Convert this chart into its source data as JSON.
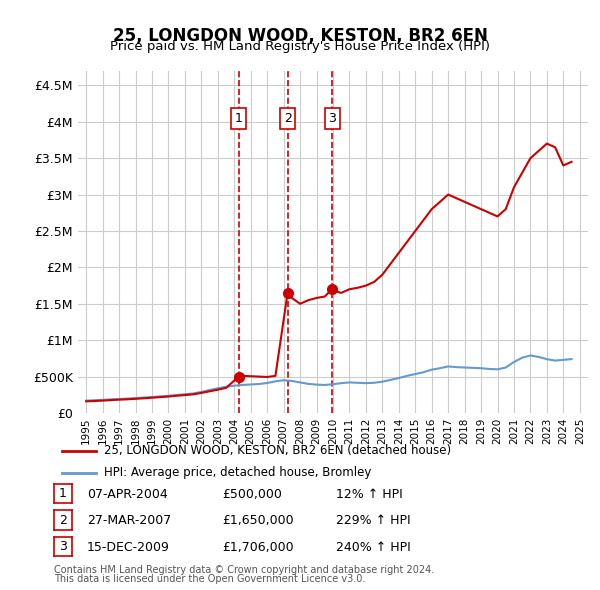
{
  "title": "25, LONGDON WOOD, KESTON, BR2 6EN",
  "subtitle": "Price paid vs. HM Land Registry's House Price Index (HPI)",
  "legend_line1": "25, LONGDON WOOD, KESTON, BR2 6EN (detached house)",
  "legend_line2": "HPI: Average price, detached house, Bromley",
  "footer1": "Contains HM Land Registry data © Crown copyright and database right 2024.",
  "footer2": "This data is licensed under the Open Government Licence v3.0.",
  "transactions": [
    {
      "label": "1",
      "date": "07-APR-2004",
      "year": 2004.27,
      "price": 500000,
      "hpi_pct": "12% ↑ HPI"
    },
    {
      "label": "2",
      "date": "27-MAR-2007",
      "year": 2007.24,
      "price": 1650000,
      "hpi_pct": "229% ↑ HPI"
    },
    {
      "label": "3",
      "date": "15-DEC-2009",
      "year": 2009.96,
      "price": 1706000,
      "hpi_pct": "240% ↑ HPI"
    }
  ],
  "ylim": [
    0,
    4700000
  ],
  "yticks": [
    0,
    500000,
    1000000,
    1500000,
    2000000,
    2500000,
    3000000,
    3500000,
    4000000,
    4500000
  ],
  "ytick_labels": [
    "£0",
    "£500K",
    "£1M",
    "£1.5M",
    "£2M",
    "£2.5M",
    "£3M",
    "£3.5M",
    "£4M",
    "£4.5M"
  ],
  "red_color": "#cc0000",
  "blue_color": "#6699cc",
  "background_color": "#ffffff",
  "grid_color": "#cccccc",
  "hpi_x": [
    1995,
    1995.5,
    1996,
    1996.5,
    1997,
    1997.5,
    1998,
    1998.5,
    1999,
    1999.5,
    2000,
    2000.5,
    2001,
    2001.5,
    2002,
    2002.5,
    2003,
    2003.5,
    2004,
    2004.5,
    2005,
    2005.5,
    2006,
    2006.5,
    2007,
    2007.5,
    2008,
    2008.5,
    2009,
    2009.5,
    2010,
    2010.5,
    2011,
    2011.5,
    2012,
    2012.5,
    2013,
    2013.5,
    2014,
    2014.5,
    2015,
    2015.5,
    2016,
    2016.5,
    2017,
    2017.5,
    2018,
    2018.5,
    2019,
    2019.5,
    2020,
    2020.5,
    2021,
    2021.5,
    2022,
    2022.5,
    2023,
    2023.5,
    2024,
    2024.5
  ],
  "hpi_y": [
    170000,
    175000,
    180000,
    187000,
    193000,
    198000,
    205000,
    212000,
    220000,
    228000,
    237000,
    248000,
    258000,
    268000,
    290000,
    315000,
    340000,
    360000,
    375000,
    385000,
    392000,
    398000,
    412000,
    435000,
    450000,
    440000,
    420000,
    400000,
    390000,
    385000,
    395000,
    410000,
    420000,
    415000,
    410000,
    415000,
    430000,
    455000,
    480000,
    510000,
    535000,
    560000,
    595000,
    615000,
    640000,
    630000,
    625000,
    620000,
    615000,
    605000,
    600000,
    625000,
    700000,
    760000,
    790000,
    770000,
    740000,
    720000,
    730000,
    740000
  ],
  "red_x": [
    1995,
    1995.5,
    1996,
    1996.5,
    1997,
    1997.5,
    1998,
    1998.5,
    1999,
    1999.5,
    2000,
    2000.5,
    2001,
    2001.5,
    2002,
    2002.5,
    2003,
    2003.5,
    2004.27,
    2004.5,
    2005,
    2005.5,
    2006,
    2006.5,
    2007.24,
    2007.5,
    2008,
    2008.5,
    2009,
    2009.5,
    2009.96,
    2010,
    2010.5,
    2011,
    2011.5,
    2012,
    2012.5,
    2013,
    2013.5,
    2014,
    2014.5,
    2015,
    2015.5,
    2016,
    2016.5,
    2017,
    2017.5,
    2018,
    2018.5,
    2019,
    2019.5,
    2020,
    2020.5,
    2021,
    2021.5,
    2022,
    2022.5,
    2023,
    2023.5,
    2024,
    2024.5
  ],
  "red_y": [
    160000,
    165000,
    170000,
    177000,
    183000,
    188000,
    195000,
    202000,
    210000,
    218000,
    226000,
    237000,
    246000,
    256000,
    276000,
    298000,
    320000,
    345000,
    500000,
    510000,
    505000,
    500000,
    495000,
    510000,
    1650000,
    1580000,
    1500000,
    1550000,
    1580000,
    1600000,
    1706000,
    1680000,
    1650000,
    1700000,
    1720000,
    1750000,
    1800000,
    1900000,
    2050000,
    2200000,
    2350000,
    2500000,
    2650000,
    2800000,
    2900000,
    3000000,
    2950000,
    2900000,
    2850000,
    2800000,
    2750000,
    2700000,
    2800000,
    3100000,
    3300000,
    3500000,
    3600000,
    3700000,
    3650000,
    3400000,
    3450000
  ]
}
